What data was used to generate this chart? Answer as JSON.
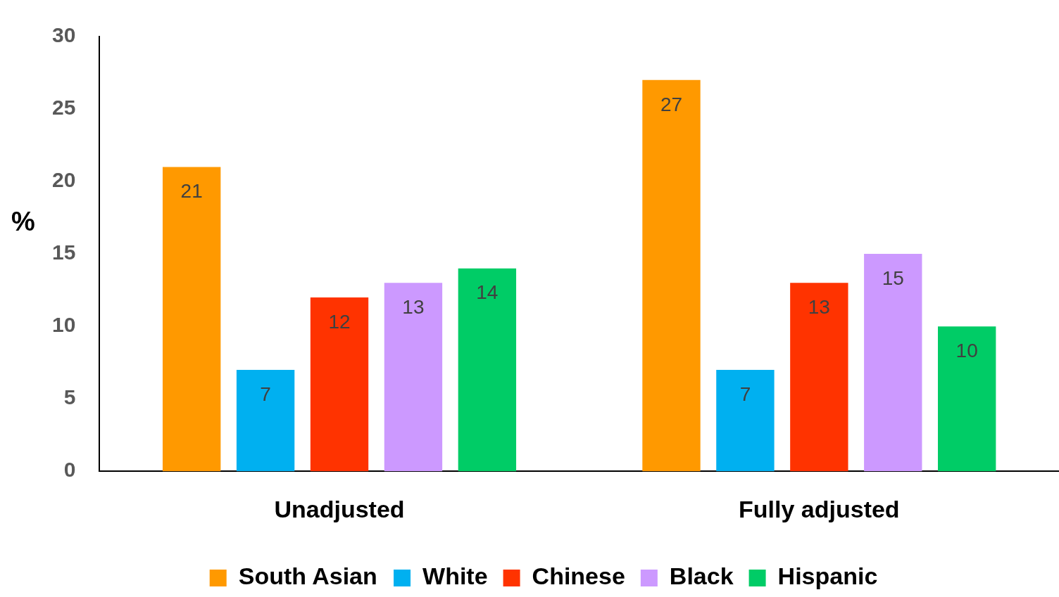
{
  "chart_data": {
    "type": "bar",
    "ylabel": "%",
    "categories": [
      "Unadjusted",
      "Fully adjusted"
    ],
    "series": [
      {
        "name": "South Asian",
        "color": "#ff9900",
        "values": [
          21,
          27
        ]
      },
      {
        "name": "White",
        "color": "#00b0f0",
        "values": [
          7,
          7
        ]
      },
      {
        "name": "Chinese",
        "color": "#ff3300",
        "values": [
          12,
          13
        ]
      },
      {
        "name": "Black",
        "color": "#cc99ff",
        "values": [
          13,
          15
        ]
      },
      {
        "name": "Hispanic",
        "color": "#00cc66",
        "values": [
          14,
          10
        ]
      }
    ],
    "ylim": [
      0,
      30
    ],
    "yticks": [
      0,
      5,
      10,
      15,
      20,
      25,
      30
    ],
    "grid": false,
    "legend": "bottom",
    "data_labels": true
  }
}
